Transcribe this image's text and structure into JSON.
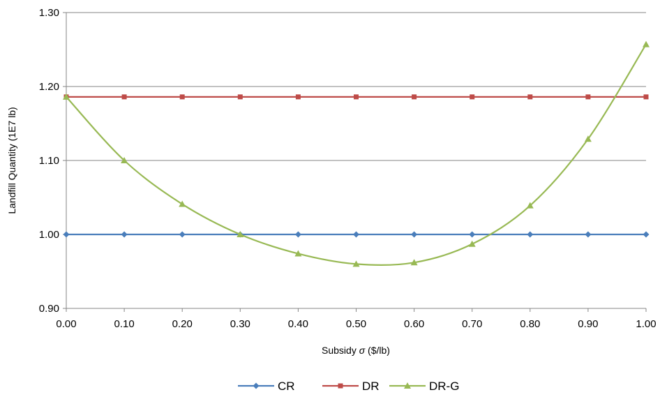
{
  "chart_data": {
    "type": "line",
    "title": "",
    "xlabel_prefix": "Subsidy ",
    "xlabel_symbol": "σ",
    "xlabel_suffix": " ($/lb)",
    "ylabel": "Landfill Quantity (1E7 lb)",
    "x": [
      0.0,
      0.1,
      0.2,
      0.3,
      0.4,
      0.5,
      0.6,
      0.7,
      0.8,
      0.9,
      1.0
    ],
    "x_tick_labels": [
      "0.00",
      "0.10",
      "0.20",
      "0.30",
      "0.40",
      "0.50",
      "0.60",
      "0.70",
      "0.80",
      "0.90",
      "1.00"
    ],
    "y_tick_values": [
      0.9,
      1.0,
      1.1,
      1.2,
      1.3
    ],
    "y_tick_labels": [
      "0.90",
      "1.00",
      "1.10",
      "1.20",
      "1.30"
    ],
    "ylim": [
      0.9,
      1.3
    ],
    "xlim": [
      0.0,
      1.0
    ],
    "grid": "horizontal",
    "legend_position": "bottom",
    "series": [
      {
        "name": "CR",
        "color": "#4a7ebb",
        "marker": "diamond",
        "smooth": false,
        "values": [
          1.0,
          1.0,
          1.0,
          1.0,
          1.0,
          1.0,
          1.0,
          1.0,
          1.0,
          1.0,
          1.0
        ]
      },
      {
        "name": "DR",
        "color": "#be4b48",
        "marker": "square",
        "smooth": false,
        "values": [
          1.186,
          1.186,
          1.186,
          1.186,
          1.186,
          1.186,
          1.186,
          1.186,
          1.186,
          1.186,
          1.186
        ]
      },
      {
        "name": "DR-G",
        "color": "#98b954",
        "marker": "triangle",
        "smooth": true,
        "values": [
          1.186,
          1.1,
          1.041,
          1.0,
          0.974,
          0.96,
          0.962,
          0.987,
          1.039,
          1.129,
          1.257
        ]
      }
    ]
  }
}
